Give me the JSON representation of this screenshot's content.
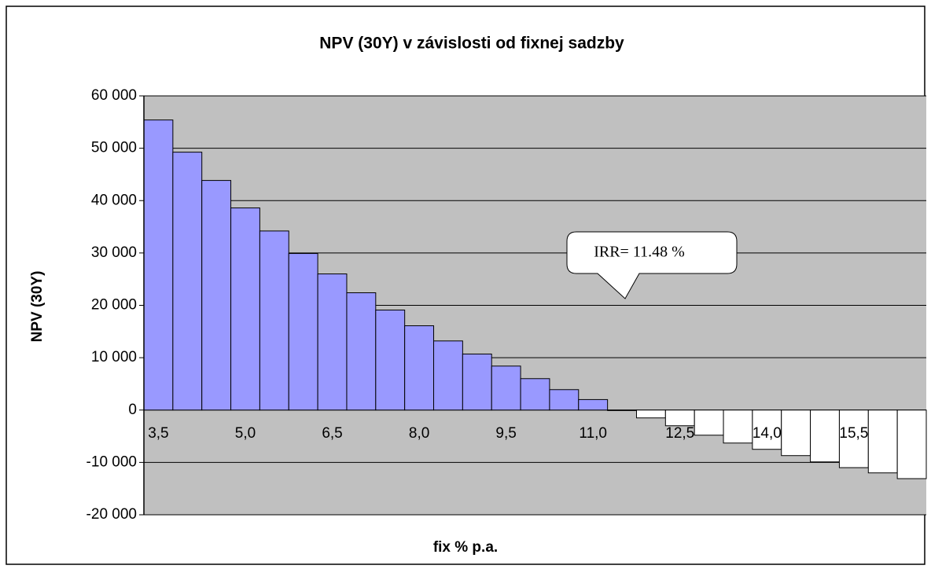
{
  "chart_data": {
    "type": "bar",
    "title": "NPV (30Y) v závislosti od fixnej sadzby",
    "y_label": "NPV (30Y)",
    "x_label": "fix % p.a.",
    "annotation": "IRR= 11.48 %",
    "categories": [
      "3,5",
      null,
      null,
      "5,0",
      null,
      null,
      "6,5",
      null,
      null,
      "8,0",
      null,
      null,
      "9,5",
      null,
      null,
      "11,0",
      null,
      null,
      "12,5",
      null,
      null,
      "14,0",
      null,
      null,
      "15,5",
      null,
      null
    ],
    "values": [
      55400,
      49250,
      43850,
      38600,
      34200,
      29900,
      26000,
      22400,
      19100,
      16100,
      13200,
      10700,
      8400,
      6000,
      3900,
      2000,
      -100,
      -1500,
      -3000,
      -4800,
      -6300,
      -7500,
      -8700,
      -9900,
      -11000,
      -12000,
      -13100
    ],
    "positive_color": "#9999ff",
    "negative_color": "#ffffff",
    "ylim": [
      -20000,
      60000
    ],
    "yticks": [
      {
        "value": -20000,
        "label": "-20 000"
      },
      {
        "value": -10000,
        "label": "-10 000"
      },
      0,
      {
        "value": 10000,
        "label": "10 000"
      },
      {
        "value": 20000,
        "label": "20 000"
      },
      {
        "value": 30000,
        "label": "30 000"
      },
      {
        "value": 40000,
        "label": "40 000"
      },
      {
        "value": 50000,
        "label": "50 000"
      },
      {
        "value": 60000,
        "label": "60 000"
      }
    ],
    "grid": true
  }
}
